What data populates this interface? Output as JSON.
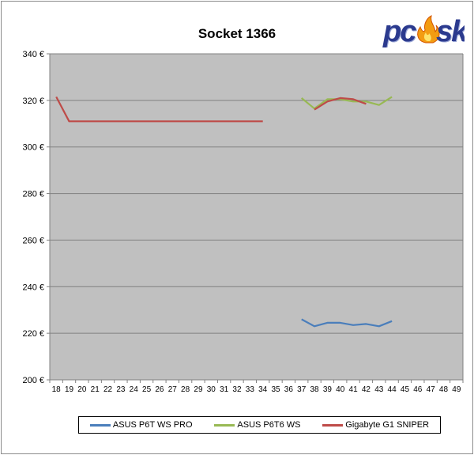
{
  "chart_data": {
    "type": "line",
    "title": "Socket 1366",
    "xlabel": "",
    "ylabel": "",
    "x": [
      18,
      19,
      20,
      21,
      22,
      23,
      24,
      25,
      26,
      27,
      28,
      29,
      30,
      31,
      32,
      33,
      34,
      35,
      36,
      37,
      38,
      39,
      40,
      41,
      42,
      43,
      44,
      45,
      46,
      47,
      48,
      49
    ],
    "y_ticks": [
      "200 €",
      "220 €",
      "240 €",
      "260 €",
      "280 €",
      "300 €",
      "320 €",
      "340 €"
    ],
    "ylim": [
      200,
      340
    ],
    "grid": "horizontal",
    "legend_position": "bottom",
    "series": [
      {
        "name": "ASUS P6T WS PRO",
        "color": "#4a7ebb",
        "points": [
          [
            37,
            226
          ],
          [
            38,
            223
          ],
          [
            39,
            224.5
          ],
          [
            40,
            224.5
          ],
          [
            41,
            223.5
          ],
          [
            42,
            224
          ],
          [
            43,
            223
          ],
          [
            44,
            225.2
          ]
        ]
      },
      {
        "name": "ASUS P6T6 WS",
        "color": "#98b954",
        "points": [
          [
            37,
            321
          ],
          [
            38,
            316.5
          ],
          [
            39,
            320.5
          ],
          [
            40,
            320.5
          ],
          [
            41,
            319.5
          ],
          [
            42,
            319.5
          ],
          [
            43,
            318
          ],
          [
            44,
            321.5
          ]
        ]
      },
      {
        "name": "Gigabyte G1 SNIPER",
        "color": "#be4b48",
        "points": [
          [
            18,
            321.5
          ],
          [
            19,
            311
          ],
          [
            20,
            311
          ],
          [
            21,
            311
          ],
          [
            22,
            311
          ],
          [
            23,
            311
          ],
          [
            24,
            311
          ],
          [
            25,
            311
          ],
          [
            26,
            311
          ],
          [
            27,
            311
          ],
          [
            28,
            311
          ],
          [
            29,
            311
          ],
          [
            30,
            311
          ],
          [
            31,
            311
          ],
          [
            32,
            311
          ],
          [
            33,
            311
          ],
          [
            34,
            311
          ],
          [
            38,
            316
          ],
          [
            39,
            319.5
          ],
          [
            40,
            321
          ],
          [
            41,
            320.5
          ],
          [
            42,
            318.5
          ]
        ]
      }
    ]
  },
  "logo": {
    "text": "pcsk",
    "colors": [
      "#2b3a8e",
      "#f39c12"
    ]
  },
  "plot_colors": {
    "background": "#c0c0c0",
    "gridline": "#808080",
    "axis": "#808080"
  }
}
